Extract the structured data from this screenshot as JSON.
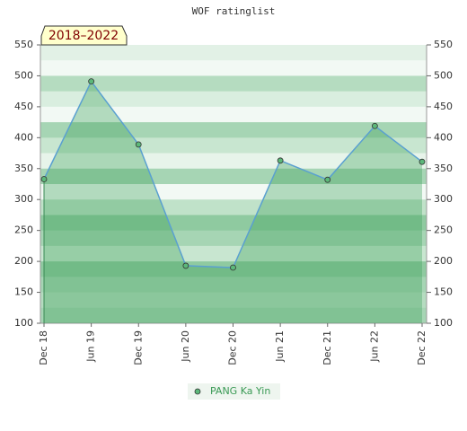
{
  "chart_data": {
    "type": "line",
    "title": "WOF ratinglist",
    "badge": "2018–2022",
    "categories": [
      "Dec 18",
      "Jun 19",
      "Dec 19",
      "Jun 20",
      "Dec 20",
      "Jun 21",
      "Dec 21",
      "Jun 22",
      "Dec 22"
    ],
    "series": [
      {
        "name": "PANG Ka Yin",
        "color": "#5aa0d0",
        "marker_color": "#5cb87a",
        "values": [
          333,
          491,
          389,
          193,
          190,
          363,
          332,
          419,
          361
        ]
      }
    ],
    "ylim": [
      100,
      550
    ],
    "yticks": [
      100,
      150,
      200,
      250,
      300,
      350,
      400,
      450,
      500,
      550
    ],
    "y2lim": [
      100,
      550
    ],
    "y2ticks": [
      100,
      150,
      200,
      250,
      300,
      350,
      400,
      450,
      500,
      550
    ],
    "legend": "bottom"
  }
}
